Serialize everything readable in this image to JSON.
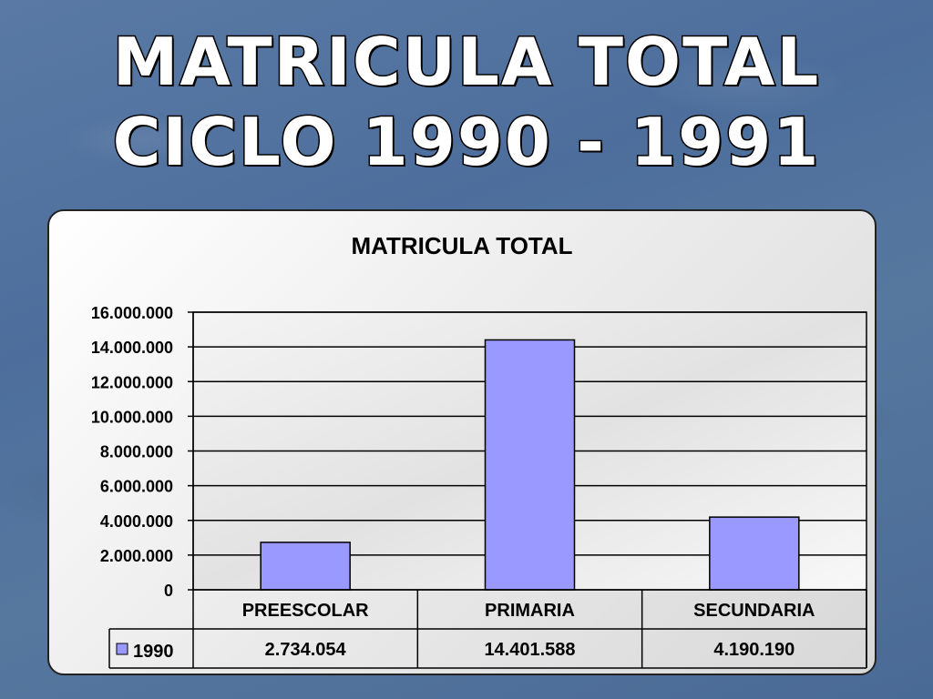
{
  "slide": {
    "title_line1": "MATRICULA TOTAL",
    "title_line2": "CICLO 1990 - 1991"
  },
  "colors": {
    "bar": "#9999ff",
    "bar_stroke": "#000000"
  },
  "chart_data": {
    "type": "bar",
    "title": "MATRICULA TOTAL",
    "categories": [
      "PREESCOLAR",
      "PRIMARIA",
      "SECUNDARIA"
    ],
    "series": [
      {
        "name": "1990",
        "values": [
          2734054,
          14401588,
          4190190
        ],
        "value_labels": [
          "2.734.054",
          "14.401.588",
          "4.190.190"
        ]
      }
    ],
    "ylim": [
      0,
      16000000
    ],
    "ytick_labels": [
      "0",
      "2.000.000",
      "4.000.000",
      "6.000.000",
      "8.000.000",
      "10.000.000",
      "12.000.000",
      "14.000.000",
      "16.000.000"
    ],
    "grid": true,
    "legend": "data-table"
  }
}
